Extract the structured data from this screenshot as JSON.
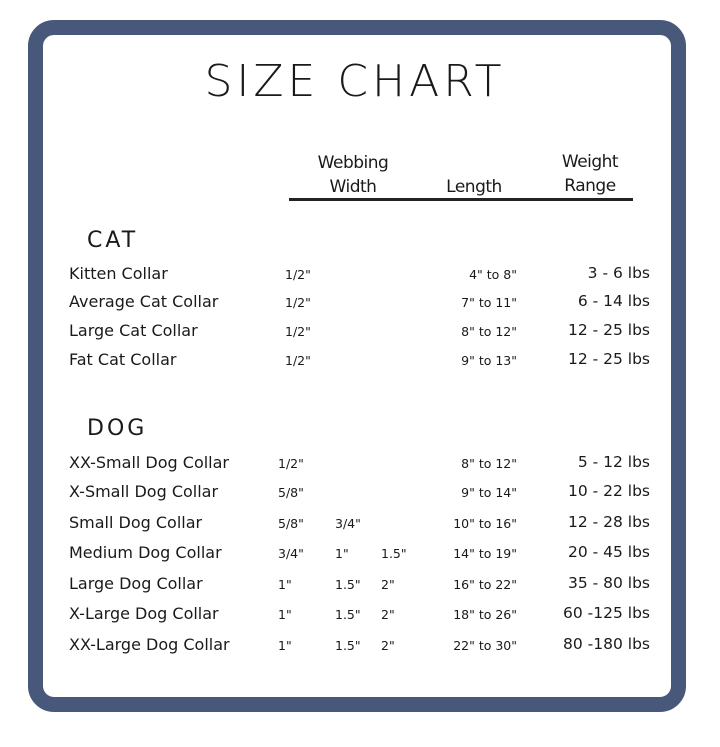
{
  "title": "SIZE CHART",
  "headers": {
    "width_line1": "Webbing",
    "width_line2": "Width",
    "length": "Length",
    "weight_line1": "Weight",
    "weight_line2": "Range"
  },
  "frame_color": "#48587a",
  "sections": [
    {
      "label": "CAT",
      "rows": [
        {
          "name": "Kitten Collar",
          "widths": [
            "1/2\""
          ],
          "length": "4\" to 8\"",
          "weight": "3 - 6 lbs"
        },
        {
          "name": "Average Cat Collar",
          "widths": [
            "1/2\""
          ],
          "length": "7\" to 11\"",
          "weight": "6 - 14 lbs"
        },
        {
          "name": "Large Cat Collar",
          "widths": [
            "1/2\""
          ],
          "length": "8\" to 12\"",
          "weight": "12 - 25 lbs"
        },
        {
          "name": "Fat Cat Collar",
          "widths": [
            "1/2\""
          ],
          "length": "9\" to 13\"",
          "weight": "12 - 25 lbs"
        }
      ]
    },
    {
      "label": "DOG",
      "rows": [
        {
          "name": "XX-Small Dog Collar",
          "widths": [
            "1/2\""
          ],
          "length": "8\" to 12\"",
          "weight": "5 - 12 lbs"
        },
        {
          "name": "X-Small Dog Collar",
          "widths": [
            "5/8\""
          ],
          "length": "9\" to 14\"",
          "weight": "10 - 22 lbs"
        },
        {
          "name": "Small Dog Collar",
          "widths": [
            "5/8\"",
            "3/4\""
          ],
          "length": "10\" to 16\"",
          "weight": "12 - 28 lbs"
        },
        {
          "name": "Medium Dog Collar",
          "widths": [
            "3/4\"",
            "1\"",
            "1.5\""
          ],
          "length": "14\" to 19\"",
          "weight": "20 - 45 lbs"
        },
        {
          "name": "Large Dog Collar",
          "widths": [
            "1\"",
            "1.5\"",
            "2\""
          ],
          "length": "16\" to 22\"",
          "weight": "35 - 80 lbs"
        },
        {
          "name": "X-Large Dog Collar",
          "widths": [
            "1\"",
            "1.5\"",
            "2\""
          ],
          "length": "18\" to 26\"",
          "weight": "60 -125 lbs"
        },
        {
          "name": "XX-Large Dog Collar",
          "widths": [
            "1\"",
            "1.5\"",
            "2\""
          ],
          "length": "22\" to 30\"",
          "weight": "80 -180 lbs"
        }
      ]
    }
  ]
}
